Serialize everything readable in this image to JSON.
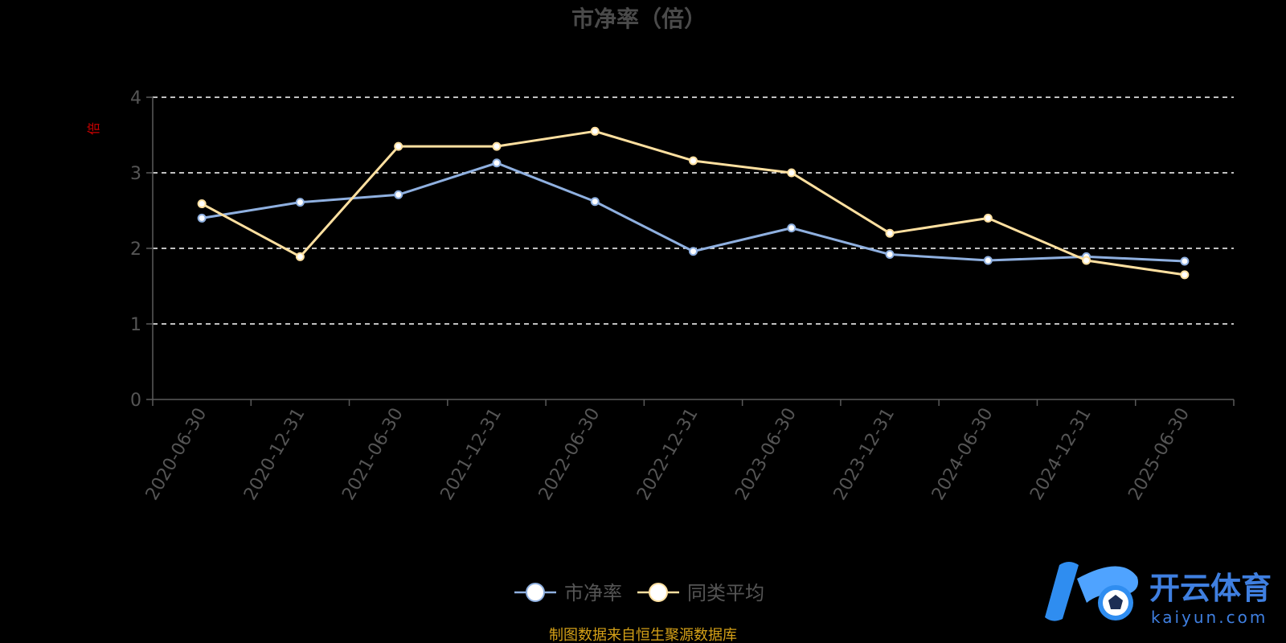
{
  "chart_data": {
    "type": "line",
    "title": "市净率（倍）",
    "unit_label": "倍",
    "categories": [
      "2020-06-30",
      "2020-12-31",
      "2021-06-30",
      "2021-12-31",
      "2022-06-30",
      "2022-12-31",
      "2023-06-30",
      "2023-12-31",
      "2024-06-30",
      "2024-12-31",
      "2025-06-30"
    ],
    "series": [
      {
        "name": "市净率",
        "color": "#8fb0e0",
        "values": [
          2.4,
          2.61,
          2.71,
          3.13,
          2.62,
          1.96,
          2.27,
          1.92,
          1.84,
          1.89,
          1.83
        ]
      },
      {
        "name": "同类平均",
        "color": "#ffe0a0",
        "values": [
          2.59,
          1.89,
          3.35,
          3.35,
          3.55,
          3.16,
          3.0,
          2.2,
          2.4,
          1.84,
          1.65
        ]
      }
    ],
    "ylim": [
      0,
      4
    ],
    "yticks": [
      0,
      1,
      2,
      3,
      4
    ],
    "grid": true,
    "legend_position": "bottom-center"
  },
  "source_note": "制图数据来自恒生聚源数据库",
  "watermark": {
    "cn_text": "开云体育",
    "en_text": "kaiyun.com"
  }
}
